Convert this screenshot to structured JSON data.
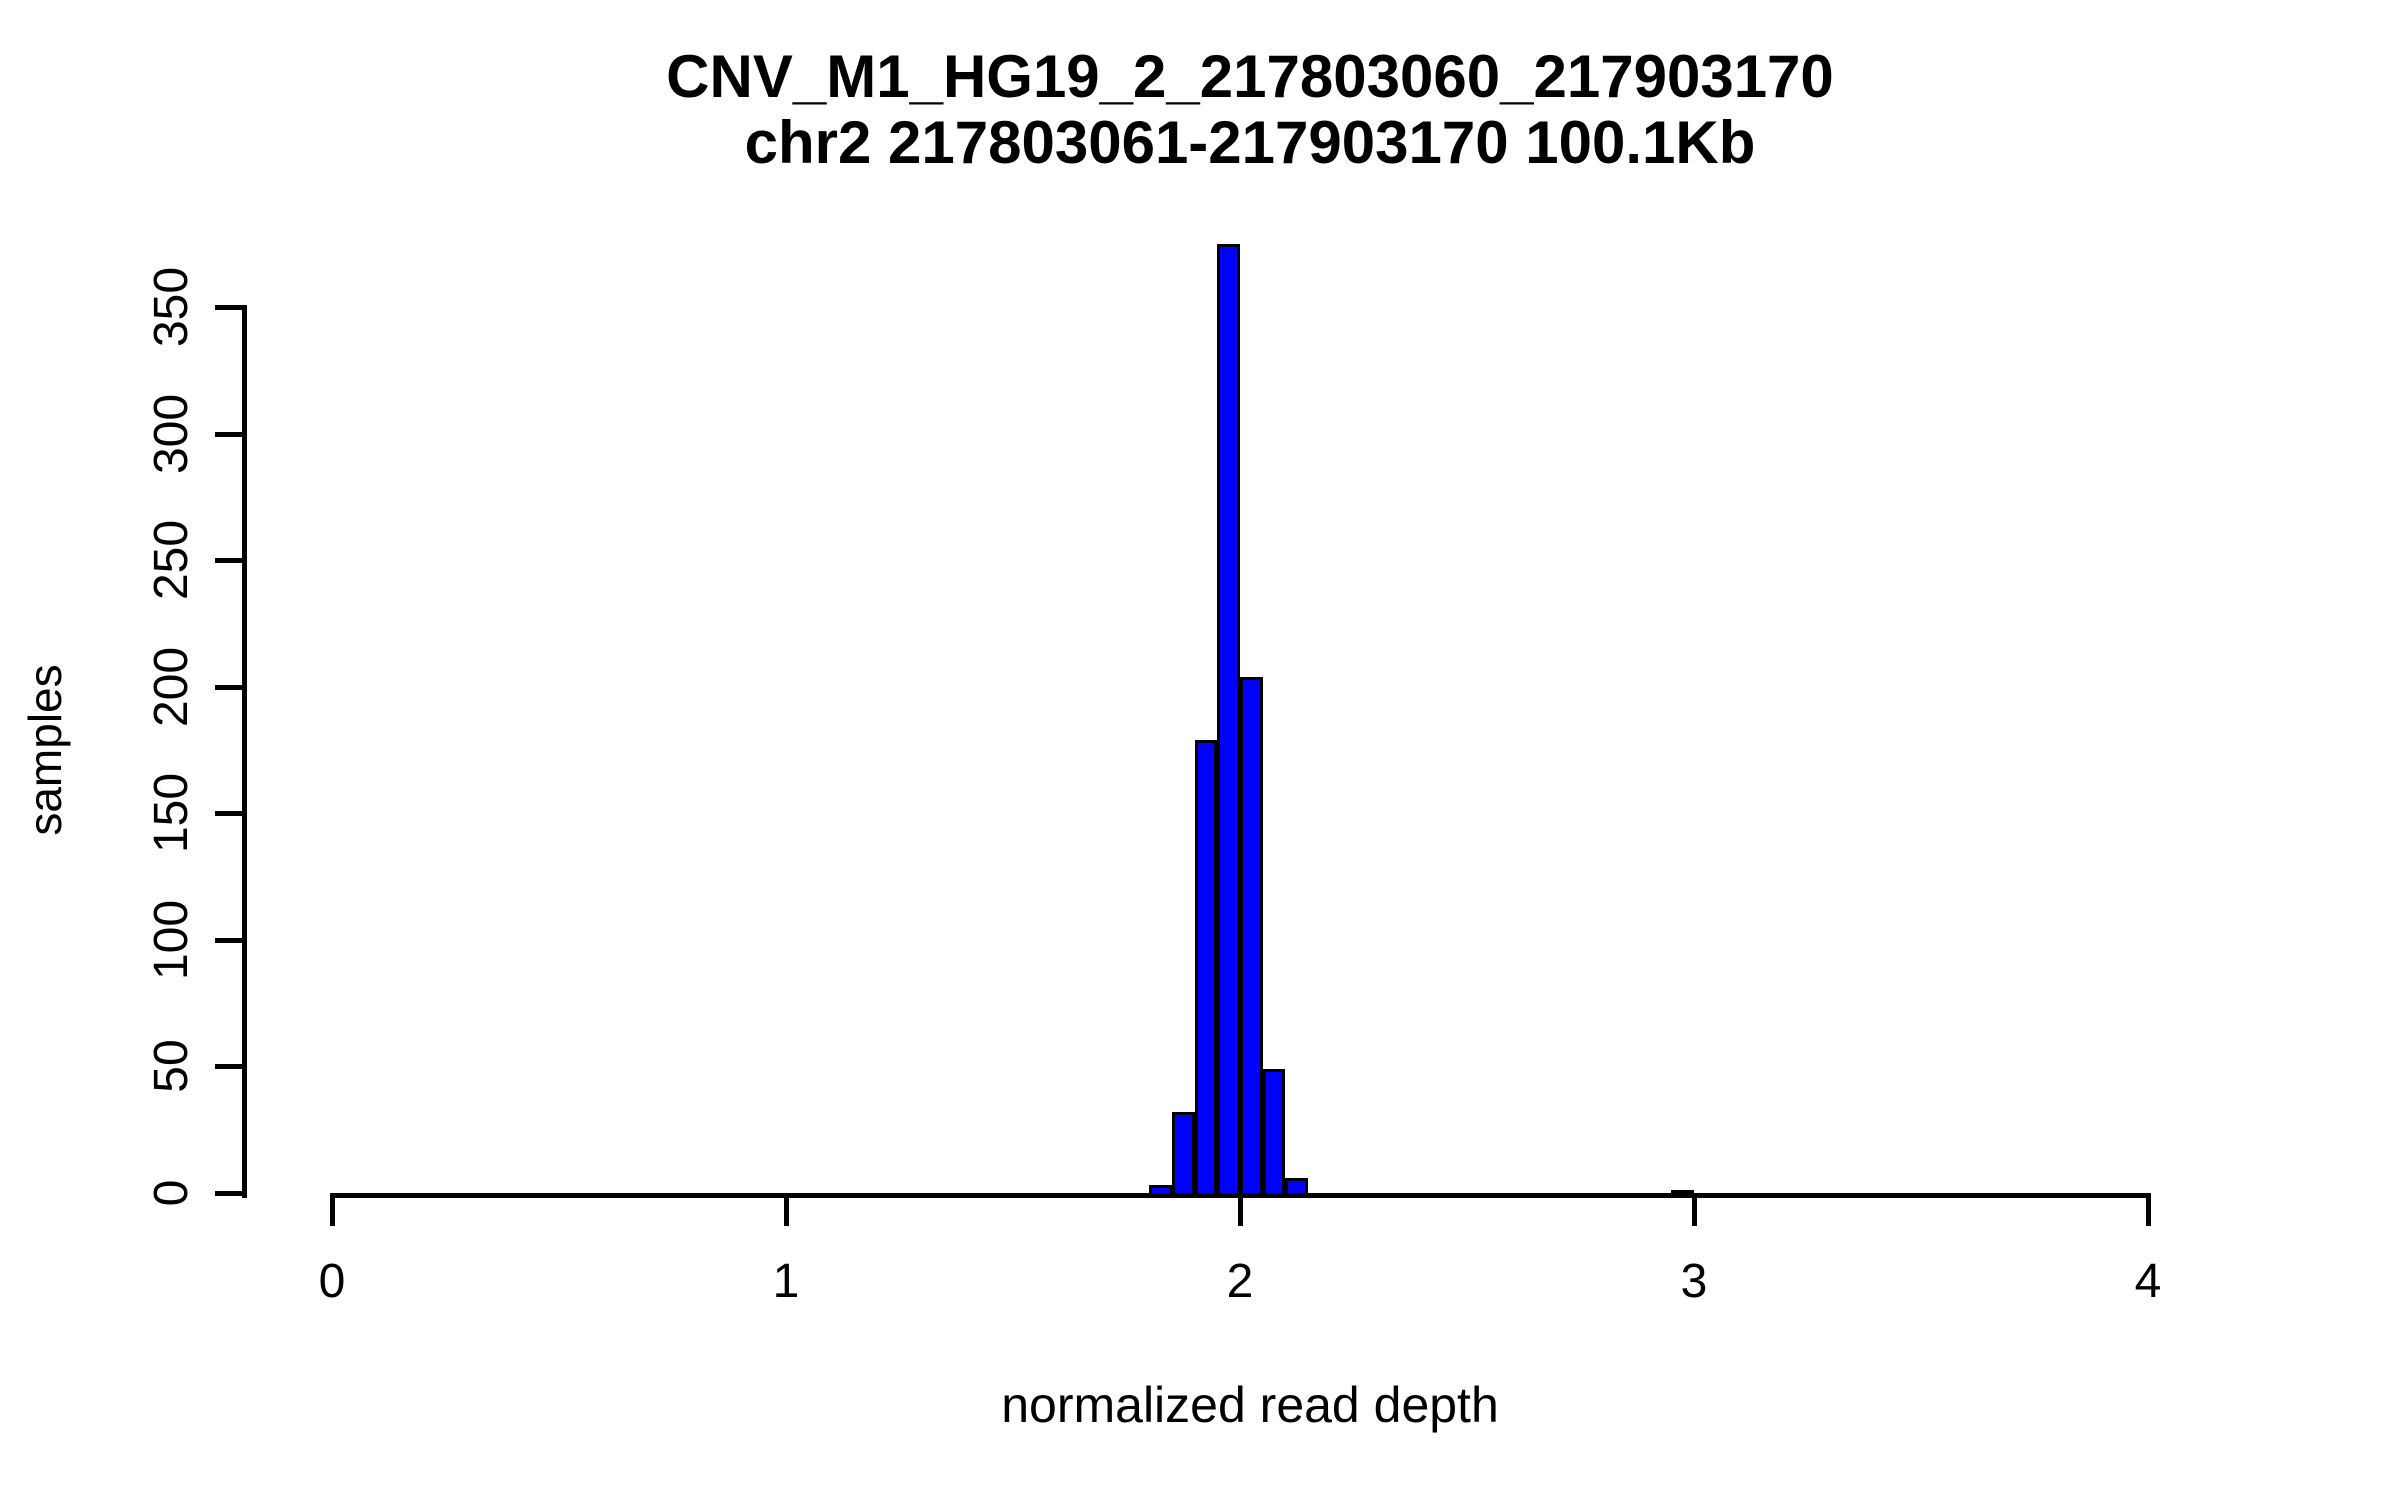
{
  "chart_data": {
    "type": "bar",
    "subtype": "histogram",
    "title": "CNV_M1_HG19_2_217803060_217903170",
    "subtitle": "chr2 217803061-217903170 100.1Kb",
    "xlabel": "normalized read depth",
    "ylabel": "samples",
    "x_ticks": [
      0,
      1,
      2,
      3,
      4
    ],
    "y_ticks": [
      0,
      50,
      100,
      150,
      200,
      250,
      300,
      350
    ],
    "xlim": [
      -0.16,
      4.16
    ],
    "ylim": [
      0,
      375
    ],
    "grid": false,
    "legend": false,
    "bar_color": "#0000FF",
    "bar_border_color": "#000000",
    "background_color": "#FFFFFF",
    "bin_width": 0.05,
    "bins": [
      {
        "x0": 1.8,
        "x1": 1.85,
        "count": 3
      },
      {
        "x0": 1.85,
        "x1": 1.9,
        "count": 32
      },
      {
        "x0": 1.9,
        "x1": 1.95,
        "count": 179
      },
      {
        "x0": 1.95,
        "x1": 2.0,
        "count": 375
      },
      {
        "x0": 2.0,
        "x1": 2.05,
        "count": 204
      },
      {
        "x0": 2.05,
        "x1": 2.1,
        "count": 49
      },
      {
        "x0": 2.1,
        "x1": 2.15,
        "count": 6
      },
      {
        "x0": 2.95,
        "x1": 3.0,
        "count": 1
      }
    ]
  }
}
